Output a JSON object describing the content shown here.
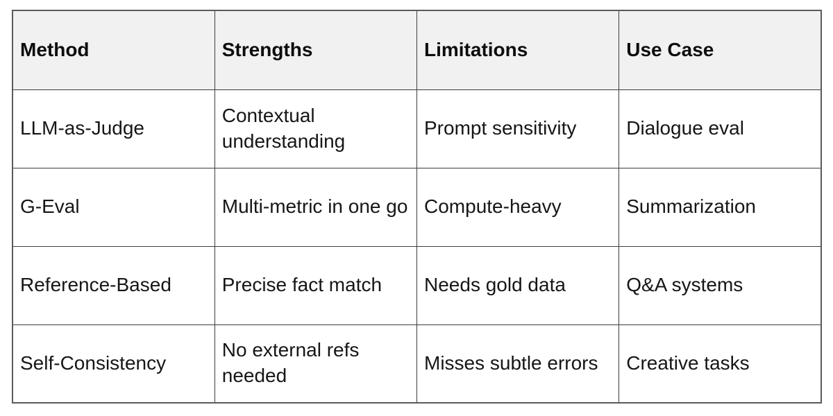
{
  "chart_data": {
    "type": "table",
    "columns": [
      "Method",
      "Strengths",
      "Limitations",
      "Use Case"
    ],
    "rows": [
      [
        "LLM-as-Judge",
        "Contextual understanding",
        "Prompt sensitivity",
        "Dialogue eval"
      ],
      [
        "G-Eval",
        "Multi-metric in one go",
        "Compute-heavy",
        "Summarization"
      ],
      [
        "Reference-Based",
        "Precise fact match",
        "Needs gold data",
        "Q&A systems"
      ],
      [
        "Self-Consistency",
        "No external refs needed",
        "Misses subtle errors",
        "Creative tasks"
      ]
    ],
    "layout_hints": {
      "header_row": true,
      "grid": "all-borders",
      "header_alignment": "left",
      "cell_alignment": "left"
    }
  },
  "colors": {
    "page_background": "#ffffff",
    "header_background": "#f1f1f1",
    "cell_background": "#ffffff",
    "grid_border": "#3c3c3c",
    "outer_border": "#5a5a5a",
    "header_text": "#0d0d0d",
    "body_text": "#161616"
  }
}
